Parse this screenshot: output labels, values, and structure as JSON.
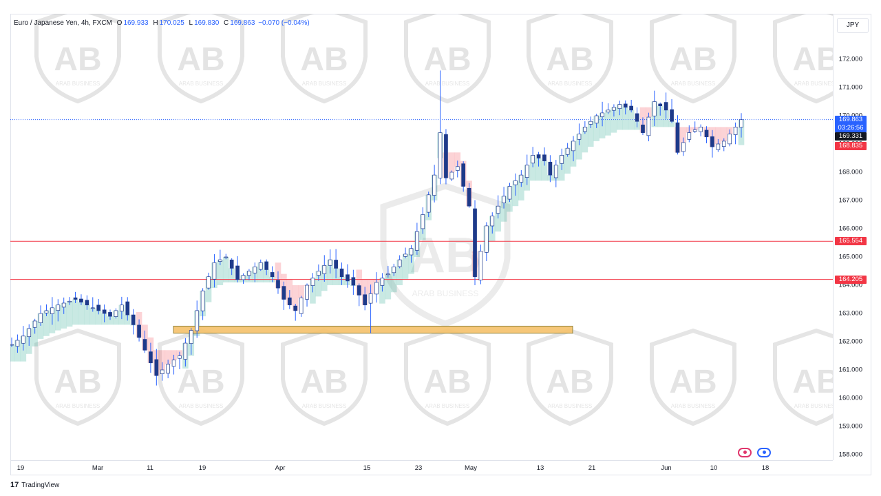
{
  "header": {
    "symbol": "Euro / Japanese Yen, 4h, FXCM",
    "o_label": "O",
    "o": "169.933",
    "h_label": "H",
    "h": "170.025",
    "l_label": "L",
    "l": "169.830",
    "c_label": "C",
    "c": "169.863",
    "change": "−0.070 (−0.04%)",
    "currency_button": "JPY"
  },
  "watermark_text": "ARAB BUSINESS",
  "watermark_logo": "AB",
  "footer": {
    "brand_logo": "17",
    "brand_name": "TradingView"
  },
  "colors": {
    "up": "#089981",
    "down": "#f23645",
    "candle": "#2962ff",
    "level": "#f23645",
    "zone": "#f6c26b"
  },
  "price_axis": {
    "ticks": [
      "172.000",
      "171.000",
      "170.000",
      "169.000",
      "168.000",
      "167.000",
      "166.000",
      "165.000",
      "164.000",
      "163.000",
      "162.000",
      "161.000",
      "160.000",
      "159.000",
      "158.000"
    ],
    "badges": [
      {
        "name": "last-price-badge",
        "text": "169.863",
        "sub": "03:26:56",
        "color": "#2962ff",
        "price": 169.863
      },
      {
        "name": "cloud-top-badge",
        "text": "169.331",
        "color": "#131722",
        "price": 169.331
      },
      {
        "name": "cloud-bottom-badge",
        "text": "168.835",
        "color": "#f23645",
        "price": 168.835
      },
      {
        "name": "level-165-badge",
        "text": "165.554",
        "color": "#f23645",
        "price": 165.554
      },
      {
        "name": "level-164-badge",
        "text": "164.205",
        "color": "#f23645",
        "price": 164.205
      }
    ]
  },
  "time_axis": {
    "labels": [
      "19",
      "Mar",
      "11",
      "19",
      "Apr",
      "15",
      "23",
      "May",
      "13",
      "21",
      "Jun",
      "10",
      "18"
    ]
  },
  "chart_data": {
    "type": "candlestick",
    "y_axis_label": "JPY",
    "ylim": [
      157.7,
      173.0
    ],
    "x_ticks": [
      "19",
      "Mar",
      "11",
      "19",
      "Apr",
      "15",
      "23",
      "May",
      "13",
      "21",
      "Jun",
      "10",
      "18"
    ],
    "close_path": [
      [
        0,
        161.9
      ],
      [
        2,
        162.2
      ],
      [
        5,
        163.0
      ],
      [
        8,
        163.3
      ],
      [
        11,
        163.5
      ],
      [
        14,
        163.2
      ],
      [
        17,
        162.9
      ],
      [
        19,
        163.3
      ],
      [
        21,
        162.6
      ],
      [
        23,
        161.7
      ],
      [
        25,
        160.8
      ],
      [
        27,
        161.2
      ],
      [
        29,
        161.5
      ],
      [
        31,
        162.4
      ],
      [
        33,
        163.8
      ],
      [
        35,
        164.8
      ],
      [
        37,
        165.0
      ],
      [
        39,
        164.2
      ],
      [
        41,
        164.5
      ],
      [
        43,
        164.8
      ],
      [
        45,
        164.3
      ],
      [
        47,
        163.5
      ],
      [
        49,
        163.1
      ],
      [
        51,
        164.0
      ],
      [
        53,
        164.5
      ],
      [
        55,
        164.9
      ],
      [
        57,
        164.3
      ],
      [
        59,
        164.0
      ],
      [
        61,
        163.3
      ],
      [
        63,
        164.1
      ],
      [
        65,
        164.4
      ],
      [
        67,
        164.9
      ],
      [
        69,
        165.3
      ],
      [
        71,
        166.5
      ],
      [
        73,
        167.9
      ],
      [
        74,
        169.4
      ],
      [
        75,
        167.8
      ],
      [
        77,
        168.2
      ],
      [
        79,
        166.8
      ],
      [
        80,
        164.3
      ],
      [
        82,
        166.1
      ],
      [
        84,
        166.8
      ],
      [
        86,
        167.5
      ],
      [
        88,
        167.9
      ],
      [
        90,
        168.6
      ],
      [
        92,
        168.4
      ],
      [
        93,
        167.9
      ],
      [
        95,
        168.6
      ],
      [
        97,
        169.1
      ],
      [
        99,
        169.6
      ],
      [
        101,
        170.0
      ],
      [
        103,
        170.2
      ],
      [
        105,
        170.4
      ],
      [
        107,
        170.2
      ],
      [
        109,
        169.4
      ],
      [
        111,
        170.5
      ],
      [
        113,
        170.2
      ],
      [
        114,
        169.8
      ],
      [
        115,
        168.7
      ],
      [
        117,
        169.4
      ],
      [
        119,
        169.6
      ],
      [
        121,
        168.9
      ],
      [
        123,
        169.1
      ],
      [
        125,
        169.6
      ],
      [
        126,
        169.86
      ]
    ],
    "horizontal_levels": [
      165.554,
      164.205
    ],
    "support_zone": {
      "from": 162.3,
      "to": 162.55
    },
    "last_price": 169.863,
    "countdown": "03:26:56"
  }
}
